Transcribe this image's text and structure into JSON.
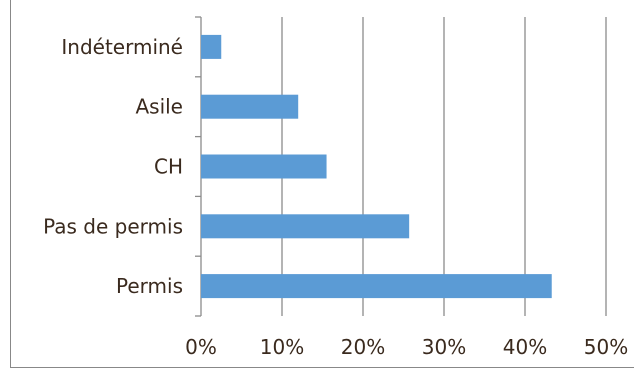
{
  "chart_data": {
    "type": "bar",
    "orientation": "horizontal",
    "categories": [
      "Indéterminé",
      "Asile",
      "CH",
      "Pas de permis",
      "Permis"
    ],
    "values": [
      2.5,
      12,
      15.5,
      25.7,
      43.3
    ],
    "xlim": [
      0,
      50
    ],
    "xticks": [
      "0%",
      "10%",
      "20%",
      "30%",
      "40%",
      "50%"
    ],
    "grid": "vertical",
    "bar_color": "#5b9bd5",
    "grid_color": "#8c8c8c",
    "text_color": "#3a2a1e"
  }
}
